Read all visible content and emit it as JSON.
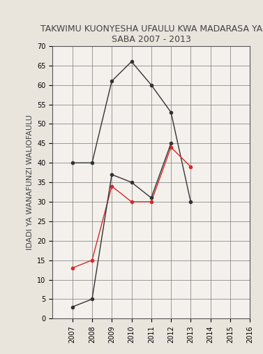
{
  "chart_data": {
    "type": "line",
    "title": "TAKWIMU KUONYESHA UFAULU KWA MADARASA YA SABA 2007 - 2013",
    "y_label": "IDADI YA WANAFUNZI WALIOFAULU",
    "x": [
      2007,
      2008,
      2009,
      2010,
      2011,
      2012,
      2013
    ],
    "series": [
      {
        "color": "#333333",
        "marker": "o",
        "values": [
          40,
          40,
          61,
          66,
          60,
          53,
          30
        ]
      },
      {
        "color": "#d62828",
        "marker": "o",
        "values": [
          13,
          15,
          34,
          30,
          30,
          44,
          39
        ]
      },
      {
        "color": "#333333",
        "marker": "o",
        "values": [
          3,
          5,
          37,
          35,
          31,
          45,
          null
        ]
      }
    ],
    "xlim": [
      2006,
      2016
    ],
    "xticks": [
      2007,
      2008,
      2009,
      2010,
      2011,
      2012,
      2013,
      2014,
      2015,
      2016
    ],
    "ylim": [
      0,
      70
    ],
    "yticks": [
      0,
      5,
      10,
      15,
      20,
      25,
      30,
      35,
      40,
      45,
      50,
      55,
      60,
      65,
      70
    ],
    "grid": true
  }
}
